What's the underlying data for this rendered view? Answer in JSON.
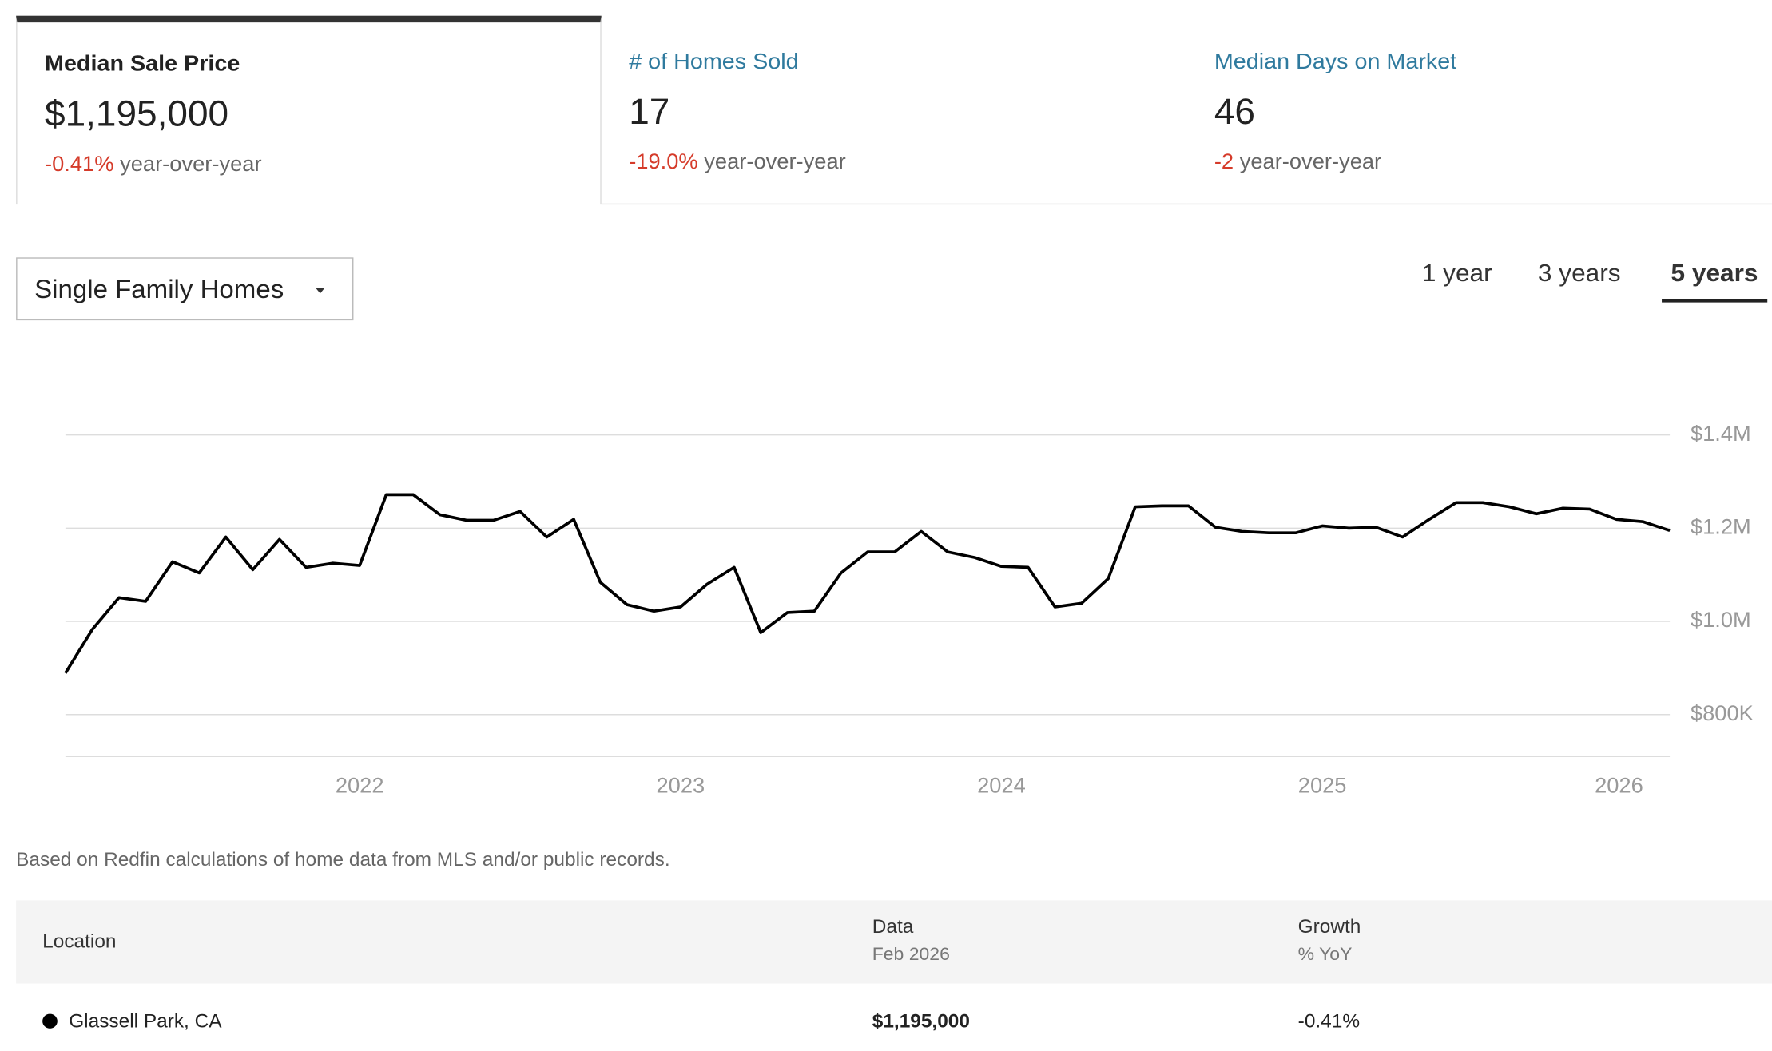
{
  "metrics": [
    {
      "title": "Median Sale Price",
      "value": "$1,195,000",
      "change": "-0.41%",
      "change_label": "year-over-year"
    },
    {
      "title": "# of Homes Sold",
      "value": "17",
      "change": "-19.0%",
      "change_label": "year-over-year"
    },
    {
      "title": "Median Days on Market",
      "value": "46",
      "change": "-2",
      "change_label": "year-over-year"
    }
  ],
  "property_type": "Single Family Homes",
  "ranges": [
    "1 year",
    "3 years",
    "5 years"
  ],
  "chart_data": {
    "type": "line",
    "x": [
      2021.083,
      2021.167,
      2021.25,
      2021.333,
      2021.417,
      2021.5,
      2021.583,
      2021.667,
      2021.75,
      2021.833,
      2021.917,
      2022,
      2022.083,
      2022.167,
      2022.25,
      2022.333,
      2022.417,
      2022.5,
      2022.583,
      2022.667,
      2022.75,
      2022.833,
      2022.917,
      2023,
      2023.083,
      2023.167,
      2023.25,
      2023.333,
      2023.417,
      2023.5,
      2023.583,
      2023.667,
      2023.75,
      2023.833,
      2023.917,
      2024,
      2024.083,
      2024.167,
      2024.25,
      2024.333,
      2024.417,
      2024.5,
      2024.583,
      2024.667,
      2024.75,
      2024.833,
      2024.917,
      2025,
      2025.083,
      2025.167,
      2025.25,
      2025.333,
      2025.417,
      2025.5,
      2025.583,
      2025.667,
      2025.75,
      2025.833,
      2025.917,
      2026,
      2026.083
    ],
    "series": [
      {
        "name": "Glassell Park, CA",
        "color": "#000000",
        "values": [
          889000,
          983000,
          1051000,
          1043000,
          1128000,
          1104000,
          1181000,
          1111000,
          1176000,
          1116000,
          1125000,
          1120000,
          1272000,
          1272000,
          1229000,
          1217000,
          1217000,
          1236000,
          1181000,
          1219000,
          1084000,
          1036000,
          1022000,
          1031000,
          1080000,
          1116000,
          976000,
          1019000,
          1022000,
          1104000,
          1149000,
          1149000,
          1193000,
          1149000,
          1137000,
          1118000,
          1116000,
          1031000,
          1039000,
          1092000,
          1246000,
          1248000,
          1248000,
          1202000,
          1193000,
          1190000,
          1190000,
          1205000,
          1200000,
          1202000,
          1181000,
          1219000,
          1255000,
          1255000,
          1246000,
          1231000,
          1243000,
          1241000,
          1219000,
          1214000,
          1195000
        ]
      }
    ],
    "xlim": [
      2021.083,
      2026.083
    ],
    "xticks": [
      2022,
      2023,
      2024,
      2025,
      2026
    ],
    "ylim": [
      710000,
      1400000
    ],
    "yticks": [
      {
        "value": 800000,
        "label": "$800K"
      },
      {
        "value": 1000000,
        "label": "$1.0M"
      },
      {
        "value": 1200000,
        "label": "$1.2M"
      },
      {
        "value": 1400000,
        "label": "$1.4M"
      }
    ],
    "grid": true
  },
  "footnote": "Based on Redfin calculations of home data from MLS and/or public records.",
  "table": {
    "headers": [
      {
        "title": "Location"
      },
      {
        "title": "Data",
        "sub": "Feb 2026"
      },
      {
        "title": "Growth",
        "sub": "% YoY"
      }
    ],
    "rows": [
      [
        "Glassell Park, CA",
        "$1,195,000",
        "-0.41%"
      ]
    ]
  }
}
